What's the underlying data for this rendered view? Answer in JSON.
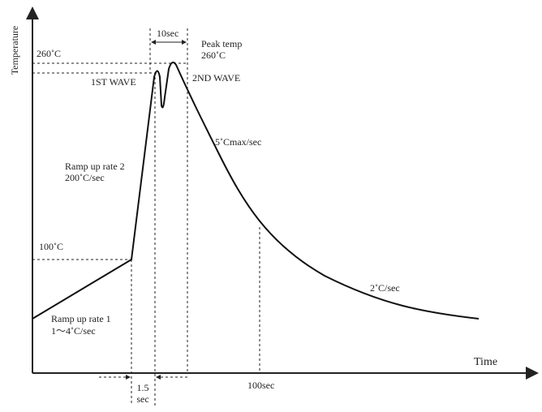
{
  "axes": {
    "y_label": "Temperature",
    "x_label": "Time"
  },
  "labels": {
    "peak_level": "260˚C",
    "first_wave": "1ST WAVE",
    "ten_sec": "10sec",
    "peak_title": "Peak temp",
    "peak_value": "260˚C",
    "second_wave": "2ND WAVE",
    "cool_rate_1": "5˚Cmax/sec",
    "ramp2_title": "Ramp up rate 2",
    "ramp2_value": "200˚C/sec",
    "level_100": "100˚C",
    "cool_rate_2": "2˚C/sec",
    "ramp1_title": "Ramp up rate 1",
    "ramp1_value": "1～4˚C/sec",
    "time_100": "100sec",
    "gap_value": "1.5",
    "gap_unit": "sec"
  }
}
